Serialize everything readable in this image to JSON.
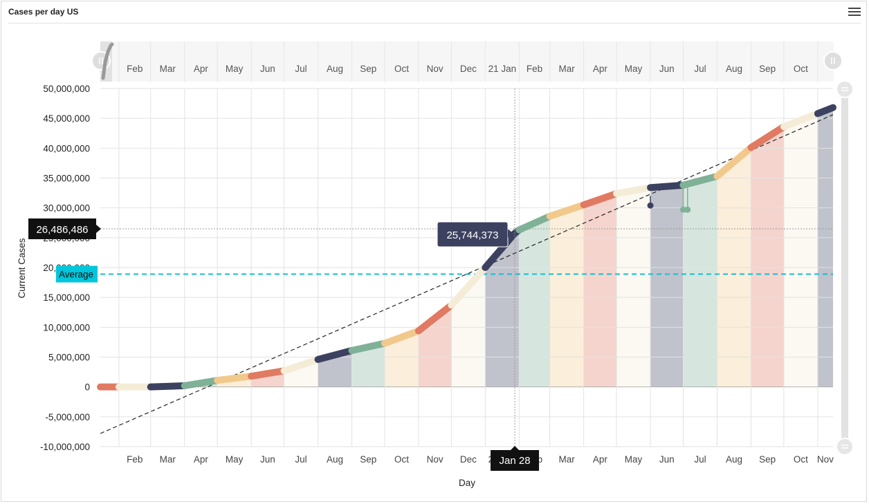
{
  "header": {
    "title": "Cases per day US"
  },
  "menu_icon": "hamburger-menu-icon",
  "colors": {
    "avg_line": "#17bcd0",
    "avg_badge": "#00c6db",
    "trend": "#222222",
    "tooltip_bg": "#3c4160",
    "crosshair_badge": "#111111",
    "palette": [
      "#e07a62",
      "#f4ecd6",
      "#3c4160",
      "#7fb197",
      "#f2c98c"
    ]
  },
  "chart_data": {
    "type": "area",
    "title": "Cases per day US",
    "xlabel": "Day",
    "ylabel": "Current Cases",
    "ylim": [
      -10000000,
      50000000
    ],
    "ytick_step": 5000000,
    "ytick_labels": [
      "-10,000,000",
      "-5,000,000",
      "0",
      "5,000,000",
      "10,000,000",
      "15,000,000",
      "20,000,000",
      "25,000,000",
      "30,000,000",
      "35,000,000",
      "40,000,000",
      "45,000,000",
      "50,000,000"
    ],
    "xlim": [
      "2020-01-15",
      "2021-11-15"
    ],
    "xtick_labels": [
      "Feb",
      "Mar",
      "Apr",
      "May",
      "Jun",
      "Jul",
      "Aug",
      "Sep",
      "Oct",
      "Nov",
      "Dec",
      "21 Jan",
      "Feb",
      "Mar",
      "Apr",
      "May",
      "Jun",
      "Jul",
      "Aug",
      "Sep",
      "Oct",
      "Nov"
    ],
    "series": [
      {
        "x": [
          "2020-01-15",
          "2020-02-01",
          "2020-03-01",
          "2020-04-01",
          "2020-05-01",
          "2020-06-01",
          "2020-07-01",
          "2020-08-01",
          "2020-09-01",
          "2020-10-01",
          "2020-11-01",
          "2020-12-01",
          "2021-01-01",
          "2021-01-28",
          "2021-02-01",
          "2021-03-01",
          "2021-04-01",
          "2021-05-01",
          "2021-06-01",
          "2021-07-01",
          "2021-08-01",
          "2021-09-01",
          "2021-10-01",
          "2021-11-01",
          "2021-11-15"
        ],
        "values": [
          0,
          0,
          0,
          200000,
          1100000,
          1800000,
          2700000,
          4600000,
          6100000,
          7300000,
          9400000,
          13700000,
          20000000,
          25744373,
          26300000,
          28600000,
          30500000,
          32400000,
          33400000,
          33800000,
          35300000,
          40100000,
          43600000,
          45800000,
          46800000
        ]
      }
    ],
    "annotations": [
      {
        "type": "hline",
        "label": "Average",
        "value": 18900000
      },
      {
        "type": "crosshair",
        "x_label": "Jan 28",
        "y_label": "26,486,486",
        "tooltip": "25,744,373"
      }
    ],
    "trendline": {
      "start": -7800000,
      "end": 45600000
    },
    "navigator": {
      "labels": [
        "Feb",
        "Mar",
        "Apr",
        "May",
        "Jun",
        "Jul",
        "Aug",
        "Sep",
        "Oct",
        "Nov",
        "Dec",
        "21 Jan",
        "Feb",
        "Mar",
        "Apr",
        "May",
        "Jun",
        "Jul",
        "Aug",
        "Sep",
        "Oct"
      ]
    },
    "grid": true,
    "legend": "none"
  }
}
